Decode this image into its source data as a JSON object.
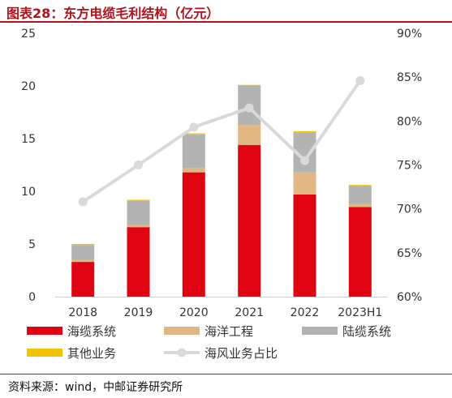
{
  "title": "图表28：东方电缆毛利结构（亿元）",
  "source": "资料来源：wind，中邮证券研究所",
  "colors": {
    "ocean_system": "#e00412",
    "ocean_engineering": "#e1b784",
    "land_system": "#b3b3b3",
    "other_business": "#f2c200",
    "ocean_share": "#d9d9d9",
    "title": "#b0121b"
  },
  "chart_data": {
    "type": "bar",
    "stacked": true,
    "categories": [
      "2018",
      "2019",
      "2020",
      "2021",
      "2022",
      "2023H1"
    ],
    "series": [
      {
        "name": "海缆系统",
        "values": [
          3.3,
          6.6,
          11.8,
          14.4,
          9.7,
          8.5
        ]
      },
      {
        "name": "海洋工程",
        "values": [
          0.2,
          0.2,
          0.4,
          1.9,
          2.1,
          0.3
        ]
      },
      {
        "name": "陆缆系统",
        "values": [
          1.4,
          2.3,
          3.2,
          3.7,
          3.8,
          1.7
        ]
      },
      {
        "name": "其他业务",
        "values": [
          0.1,
          0.1,
          0.1,
          0.1,
          0.1,
          0.1
        ]
      }
    ],
    "line": {
      "name": "海风业务占比",
      "axis": "right",
      "values": [
        70.8,
        75.0,
        79.3,
        81.5,
        75.5,
        84.6
      ]
    },
    "ylim": [
      0,
      25
    ],
    "yticks": [
      "0",
      "5",
      "10",
      "15",
      "20",
      "25"
    ],
    "y2lim": [
      60,
      90
    ],
    "y2ticks": [
      "60%",
      "65%",
      "70%",
      "75%",
      "80%",
      "85%",
      "90%"
    ],
    "grid": false,
    "legend": {
      "position": "bottom",
      "row1": [
        "海缆系统",
        "海洋工程",
        "陆缆系统"
      ],
      "row2": [
        "其他业务",
        "海风业务占比"
      ]
    }
  }
}
